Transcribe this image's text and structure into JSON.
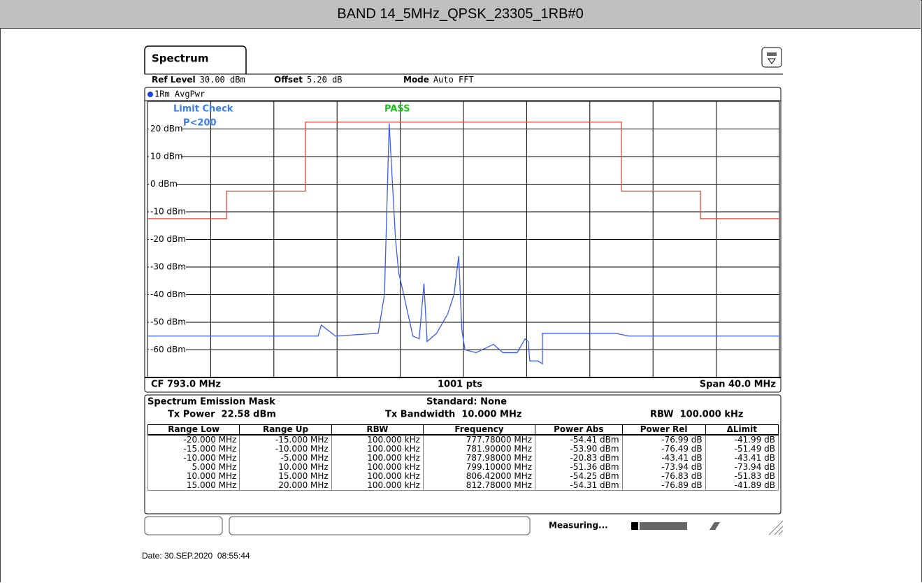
{
  "header": {
    "title": "BAND 14_5MHz_QPSK_23305_1RB#0"
  },
  "spectrum": {
    "tab": "Spectrum",
    "settings": [
      {
        "label": "Ref Level",
        "value": "30.00 dBm"
      },
      {
        "label": "Offset",
        "value": "5.20 dB"
      },
      {
        "label": "Mode",
        "value": "Auto FFT"
      }
    ],
    "footer": {
      "cf": "CF 793.0 MHz",
      "points": "1001 pts",
      "span": "Span 40.0 MHz"
    }
  },
  "chart_data": {
    "type": "line",
    "trace_label": "1Rm AvgPwr",
    "limit_check": "Limit Check",
    "limit_rule": "P<200",
    "result": "PASS",
    "xlim": [
      773,
      813
    ],
    "ylim": [
      -70,
      30
    ],
    "xticks": [
      773,
      777,
      781,
      785,
      789,
      793,
      797,
      801,
      805,
      809,
      813
    ],
    "yticks": [
      {
        "value": 30,
        "label": ""
      },
      {
        "value": 20,
        "label": "20 dBm"
      },
      {
        "value": 10,
        "label": "10 dBm"
      },
      {
        "value": 0,
        "label": "0 dBm"
      },
      {
        "value": -10,
        "label": "-10 dBm"
      },
      {
        "value": -20,
        "label": "-20 dBm"
      },
      {
        "value": -30,
        "label": "-30 dBm"
      },
      {
        "value": -40,
        "label": "-40 dBm"
      },
      {
        "value": -50,
        "label": "-50 dBm"
      },
      {
        "value": -60,
        "label": "-60 dBm"
      },
      {
        "value": -70,
        "label": ""
      }
    ],
    "grid": true,
    "series": [
      {
        "name": "1Rm AvgPwr",
        "color": "#3b5cf0",
        "x": [
          773.0,
          776.9,
          783.8,
          784.0,
          784.9,
          787.6,
          788.0,
          788.3,
          788.7,
          788.9,
          789.1,
          789.8,
          790.2,
          790.5,
          790.7,
          791.3,
          792.0,
          792.4,
          792.7,
          792.9,
          793.1,
          793.8,
          794.9,
          795.5,
          796.4,
          796.9,
          797.1,
          797.2,
          797.7,
          798.0,
          798.0,
          799.1,
          802.6,
          803.5,
          813.0
        ],
        "values": [
          -55,
          -55,
          -55,
          -51,
          -55,
          -54,
          -40,
          22,
          -20,
          -32,
          -37,
          -55,
          -56,
          -36,
          -57,
          -54,
          -47,
          -40,
          -26,
          -53,
          -60,
          -61,
          -58,
          -61,
          -61,
          -56,
          -57,
          -64,
          -64,
          -65,
          -54,
          -54,
          -54,
          -55,
          -55
        ]
      },
      {
        "color": "#e8463a",
        "x": [
          773,
          778,
          778,
          783,
          783,
          803,
          803,
          808,
          808,
          813
        ],
        "values": [
          -12.5,
          -12.5,
          -2.5,
          -2.5,
          22.5,
          22.5,
          -2.5,
          -2.5,
          -12.5,
          -12.5
        ]
      }
    ]
  },
  "sem": {
    "title": "Spectrum Emission Mask",
    "standard": "Standard: None",
    "tx_power": "Tx Power  22.58 dBm",
    "tx_bandwidth": "Tx Bandwidth  10.000 MHz",
    "rbw": "RBW  100.000 kHz"
  },
  "table": {
    "headers": [
      "Range Low",
      "Range Up",
      "RBW",
      "Frequency",
      "Power Abs",
      "Power Rel",
      "ΔLimit"
    ],
    "rows": [
      [
        "-20.000 MHz",
        "-15.000 MHz",
        "100.000 kHz",
        "777.78000 MHz",
        "-54.41 dBm",
        "-76.99 dB",
        "-41.99 dB"
      ],
      [
        "-15.000 MHz",
        "-10.000 MHz",
        "100.000 kHz",
        "781.90000 MHz",
        "-53.90 dBm",
        "-76.49 dB",
        "-51.49 dB"
      ],
      [
        "-10.000 MHz",
        "-5.000 MHz",
        "100.000 kHz",
        "787.98000 MHz",
        "-20.83 dBm",
        "-43.41 dB",
        "-43.41 dB"
      ],
      [
        "5.000 MHz",
        "10.000 MHz",
        "100.000 kHz",
        "799.10000 MHz",
        "-51.36 dBm",
        "-73.94 dB",
        "-73.94 dB"
      ],
      [
        "10.000 MHz",
        "15.000 MHz",
        "100.000 kHz",
        "806.42000 MHz",
        "-54.25 dBm",
        "-76.83 dB",
        "-51.83 dB"
      ],
      [
        "15.000 MHz",
        "20.000 MHz",
        "100.000 kHz",
        "812.78000 MHz",
        "-54.31 dBm",
        "-76.89 dB",
        "-41.89 dB"
      ]
    ]
  },
  "status": {
    "text": "Measuring..."
  },
  "date": "Date: 30.SEP.2020  08:55:44"
}
